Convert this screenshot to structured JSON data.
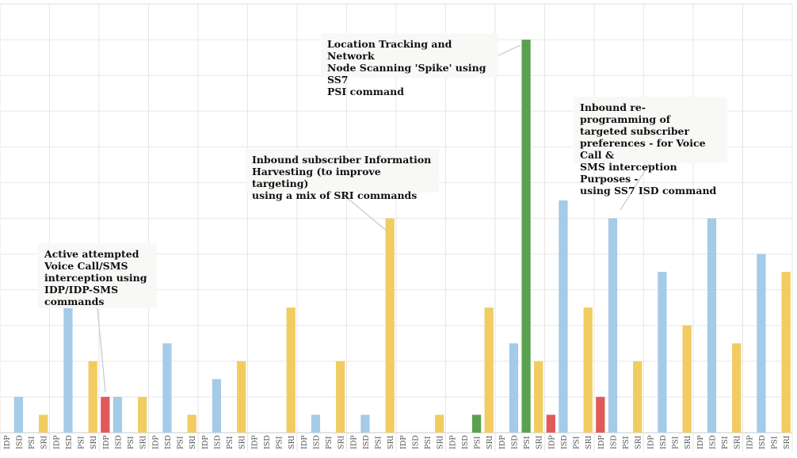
{
  "chart_data": {
    "type": "bar",
    "title": "",
    "xlabel": "",
    "ylabel": "",
    "grid": true,
    "ylim": [
      0,
      24
    ],
    "ytick_step": 2,
    "y_tick_labels_shown": false,
    "groups": 16,
    "categories": [
      "IDP",
      "ISD",
      "PSI",
      "SRI",
      "IDP",
      "ISD",
      "PSI",
      "SRI",
      "IDP",
      "ISD",
      "PSI",
      "SRI",
      "IDP",
      "ISD",
      "PSI",
      "SRI",
      "IDP",
      "ISD",
      "PSI",
      "SRI",
      "IDP",
      "ISD",
      "PSI",
      "SRI",
      "IDP",
      "ISD",
      "PSI",
      "SRI",
      "IDP",
      "ISD",
      "PSI",
      "SRI",
      "IDP",
      "ISD",
      "PSI",
      "SRI",
      "IDP",
      "ISD",
      "PSI",
      "SRI",
      "IDP",
      "ISD",
      "PSI",
      "SRI",
      "IDP",
      "ISD",
      "PSI",
      "SRI",
      "IDP",
      "ISD",
      "PSI",
      "SRI",
      "IDP",
      "ISD",
      "PSI",
      "SRI",
      "IDP",
      "ISD",
      "PSI",
      "SRI",
      "IDP",
      "ISD",
      "PSI",
      "SRI"
    ],
    "values": [
      0,
      2,
      0,
      1,
      0,
      7,
      0,
      4,
      2,
      2,
      0,
      2,
      0,
      5,
      0,
      1,
      0,
      3,
      0,
      4,
      0,
      0,
      0,
      7,
      0,
      1,
      0,
      4,
      0,
      1,
      0,
      12,
      0,
      0,
      0,
      1,
      0,
      0,
      1,
      7,
      0,
      5,
      22,
      4,
      1,
      13,
      0,
      7,
      2,
      12,
      0,
      4,
      0,
      9,
      0,
      6,
      0,
      12,
      0,
      5,
      0,
      10,
      0,
      9
    ],
    "colors": {
      "IDP": "#e05a5a",
      "ISD": "#a4cbe8",
      "PSI": "#59a14f",
      "SRI": "#f1cc60"
    },
    "annotations": [
      {
        "text": "Active attempted\nVoice Call/SMS\ninterception using\nIDP/IDP-SMS\ncommands",
        "target_index": 8
      },
      {
        "text": "Inbound subscriber Information\nHarvesting  (to improve targeting)\nusing a mix of SRI commands",
        "target_index": 31
      },
      {
        "text": "Location Tracking and Network\nNode Scanning 'Spike' using SS7\nPSI command",
        "target_index": 42
      },
      {
        "text": "Inbound re-programming of\ntargeted subscriber\npreferences - for Voice Call &\nSMS interception Purposes -\nusing SS7 ISD command",
        "target_index": 49
      }
    ]
  }
}
